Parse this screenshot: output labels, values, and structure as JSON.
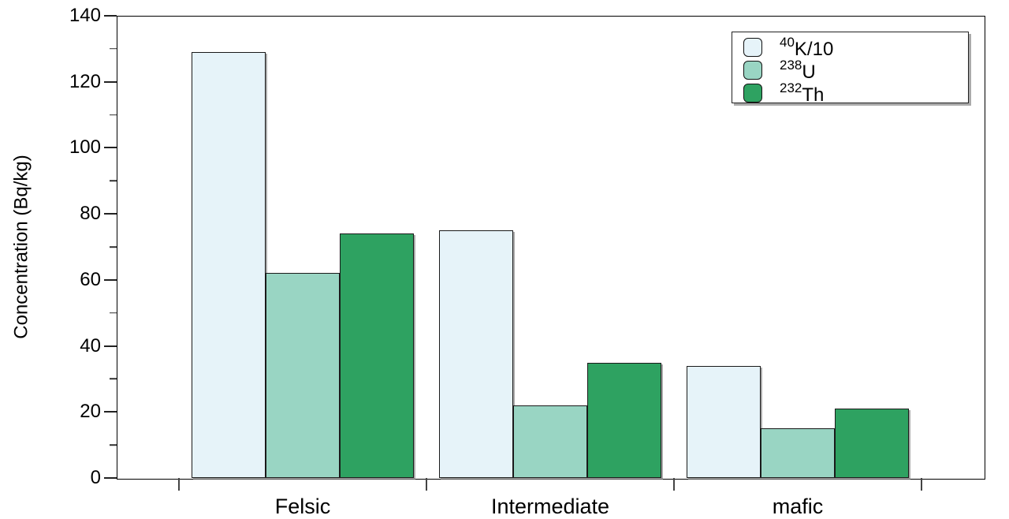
{
  "chart_data": {
    "type": "bar",
    "title": "",
    "categories": [
      "Felsic",
      "Intermediate",
      "mafic"
    ],
    "series": [
      {
        "name": "40K/10",
        "label_sup": "40",
        "label_main": "K/10",
        "color": "#e6f3f9",
        "values": [
          129,
          75,
          34
        ]
      },
      {
        "name": "238U",
        "label_sup": "238",
        "label_main": "U",
        "color": "#99d5c3",
        "values": [
          62,
          22,
          15
        ]
      },
      {
        "name": "232Th",
        "label_sup": "232",
        "label_main": "Th",
        "color": "#2ea261",
        "values": [
          74,
          35,
          21
        ]
      }
    ],
    "xlabel": "",
    "ylabel": "Concentration (Bq/kg)",
    "ylim": [
      0,
      140
    ],
    "yticks": [
      0,
      20,
      40,
      60,
      80,
      100,
      120,
      140
    ],
    "minor_yticks": [
      10,
      30,
      50,
      70,
      90,
      110,
      130
    ],
    "grid": false,
    "legend_position": "top-right",
    "bar_outline_color": "#1a1a1a",
    "background": "#ffffff"
  }
}
